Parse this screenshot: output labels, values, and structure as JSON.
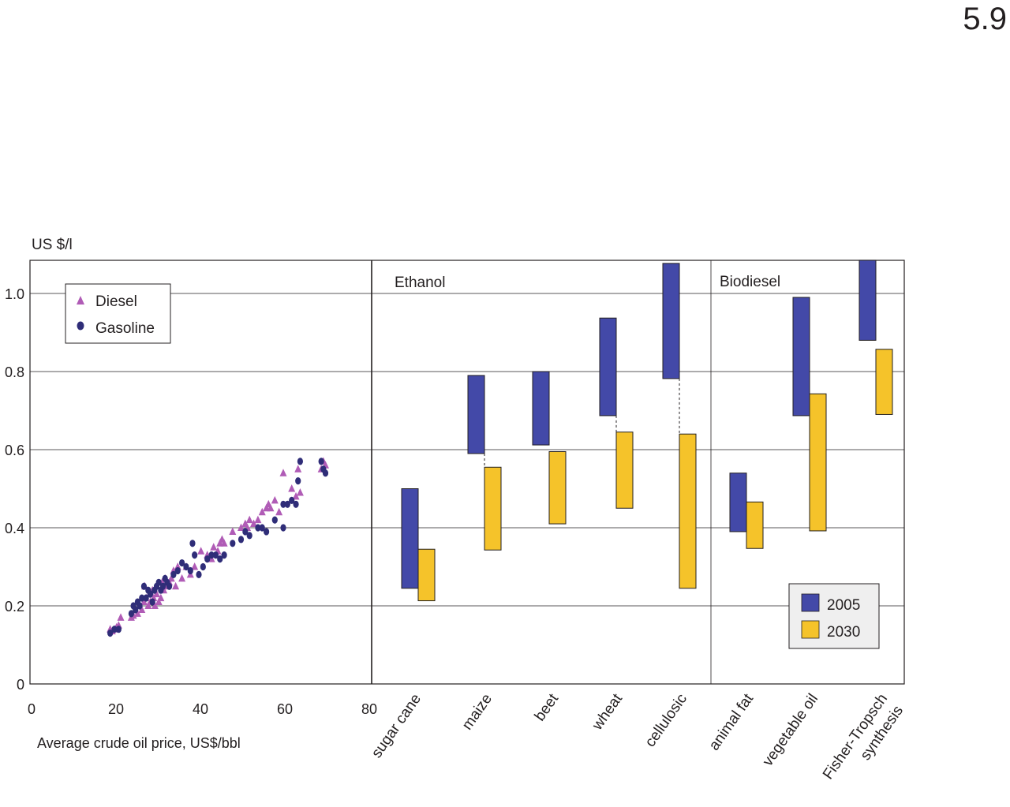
{
  "figure_number": "5.9",
  "chart_data": [
    {
      "type": "scatter",
      "ylabel": "US $/l",
      "xlabel": "Average crude oil price, US$/bbl",
      "xlim": [
        0,
        80
      ],
      "ylim": [
        0,
        1.1
      ],
      "x_ticks": [
        "0",
        "20",
        "40",
        "60",
        "80"
      ],
      "y_ticks": [
        "0",
        "0.2",
        "0.4",
        "0.6",
        "0.8",
        "1.0"
      ],
      "grid": "horizontal",
      "legend": "top-left",
      "series": [
        {
          "name": "Diesel",
          "marker": "triangle",
          "color": "#b05cb6",
          "points": [
            [
              19,
              0.14
            ],
            [
              19.5,
              0.135
            ],
            [
              20,
              0.14
            ],
            [
              20.5,
              0.145
            ],
            [
              21,
              0.15
            ],
            [
              21.5,
              0.17
            ],
            [
              24,
              0.17
            ],
            [
              24.5,
              0.175
            ],
            [
              25,
              0.19
            ],
            [
              25.5,
              0.18
            ],
            [
              26,
              0.2
            ],
            [
              26.5,
              0.19
            ],
            [
              27,
              0.21
            ],
            [
              27.2,
              0.25
            ],
            [
              27.5,
              0.22
            ],
            [
              28,
              0.2
            ],
            [
              28.3,
              0.23
            ],
            [
              28.5,
              0.21
            ],
            [
              29,
              0.24
            ],
            [
              29.3,
              0.22
            ],
            [
              29.6,
              0.2
            ],
            [
              30,
              0.23
            ],
            [
              30.5,
              0.21
            ],
            [
              31,
              0.22
            ],
            [
              31.3,
              0.26
            ],
            [
              31.7,
              0.24
            ],
            [
              32,
              0.27
            ],
            [
              32.5,
              0.25
            ],
            [
              33,
              0.26
            ],
            [
              33.5,
              0.27
            ],
            [
              34,
              0.29
            ],
            [
              34.5,
              0.25
            ],
            [
              35,
              0.3
            ],
            [
              36,
              0.27
            ],
            [
              37,
              0.3
            ],
            [
              38,
              0.28
            ],
            [
              39,
              0.3
            ],
            [
              40.5,
              0.34
            ],
            [
              42,
              0.33
            ],
            [
              43,
              0.32
            ],
            [
              43.5,
              0.35
            ],
            [
              44.5,
              0.34
            ],
            [
              45,
              0.36
            ],
            [
              45.5,
              0.37
            ],
            [
              46,
              0.36
            ],
            [
              48,
              0.39
            ],
            [
              50,
              0.4
            ],
            [
              51,
              0.41
            ],
            [
              51.5,
              0.4
            ],
            [
              52,
              0.42
            ],
            [
              53,
              0.41
            ],
            [
              54,
              0.42
            ],
            [
              55,
              0.44
            ],
            [
              56,
              0.45
            ],
            [
              56.5,
              0.46
            ],
            [
              57,
              0.45
            ],
            [
              58,
              0.47
            ],
            [
              59,
              0.44
            ],
            [
              60,
              0.54
            ],
            [
              62,
              0.5
            ],
            [
              63,
              0.48
            ],
            [
              63.5,
              0.55
            ],
            [
              64,
              0.49
            ],
            [
              69,
              0.55
            ],
            [
              69.5,
              0.57
            ],
            [
              70,
              0.56
            ]
          ]
        },
        {
          "name": "Gasoline",
          "marker": "circle",
          "color": "#2f2d78",
          "points": [
            [
              19,
              0.13
            ],
            [
              20,
              0.14
            ],
            [
              21,
              0.14
            ],
            [
              24,
              0.18
            ],
            [
              24.5,
              0.2
            ],
            [
              25,
              0.19
            ],
            [
              25.5,
              0.21
            ],
            [
              26,
              0.2
            ],
            [
              26.5,
              0.22
            ],
            [
              27,
              0.25
            ],
            [
              27.5,
              0.22
            ],
            [
              28,
              0.24
            ],
            [
              28.5,
              0.23
            ],
            [
              29,
              0.21
            ],
            [
              29.5,
              0.24
            ],
            [
              30,
              0.25
            ],
            [
              30.5,
              0.26
            ],
            [
              31,
              0.24
            ],
            [
              31.5,
              0.25
            ],
            [
              32,
              0.27
            ],
            [
              32.5,
              0.26
            ],
            [
              33,
              0.25
            ],
            [
              34,
              0.28
            ],
            [
              35,
              0.29
            ],
            [
              36,
              0.31
            ],
            [
              37,
              0.3
            ],
            [
              38,
              0.29
            ],
            [
              38.5,
              0.36
            ],
            [
              39,
              0.33
            ],
            [
              40,
              0.28
            ],
            [
              41,
              0.3
            ],
            [
              42,
              0.32
            ],
            [
              43,
              0.33
            ],
            [
              44,
              0.33
            ],
            [
              45,
              0.32
            ],
            [
              46,
              0.33
            ],
            [
              48,
              0.36
            ],
            [
              50,
              0.37
            ],
            [
              51,
              0.39
            ],
            [
              52,
              0.38
            ],
            [
              54,
              0.4
            ],
            [
              55,
              0.4
            ],
            [
              56,
              0.39
            ],
            [
              58,
              0.42
            ],
            [
              60,
              0.46
            ],
            [
              61,
              0.46
            ],
            [
              62,
              0.47
            ],
            [
              63,
              0.46
            ],
            [
              63.5,
              0.52
            ],
            [
              64,
              0.57
            ],
            [
              60,
              0.4
            ],
            [
              69,
              0.57
            ],
            [
              69.5,
              0.55
            ],
            [
              70,
              0.54
            ]
          ]
        }
      ]
    },
    {
      "type": "bar",
      "ylim": [
        0,
        1.1
      ],
      "legend": "bottom-right",
      "groups": [
        {
          "name": "Ethanol",
          "categories": [
            "sugar cane",
            "maize",
            "beet",
            "wheat",
            "cellulosic"
          ]
        },
        {
          "name": "Biodiesel",
          "categories": [
            "animal fat",
            "vegetable oil",
            "Fisher-Tropsch synthesis"
          ]
        }
      ],
      "categories": [
        "sugar cane",
        "maize",
        "beet",
        "wheat",
        "cellulosic",
        "animal fat",
        "vegetable oil",
        "Fisher-Tropsch synthesis"
      ],
      "series": [
        {
          "name": "2005",
          "color": "#4349a8",
          "ranges": [
            [
              0.245,
              0.5
            ],
            [
              0.59,
              0.79
            ],
            [
              0.612,
              0.8
            ],
            [
              0.687,
              0.937
            ],
            [
              0.782,
              1.077
            ],
            [
              0.39,
              0.54
            ],
            [
              0.687,
              0.99
            ],
            [
              0.88,
              1.085
            ]
          ]
        },
        {
          "name": "2030",
          "color": "#f5c32a",
          "ranges": [
            [
              0.213,
              0.345
            ],
            [
              0.343,
              0.555
            ],
            [
              0.41,
              0.595
            ],
            [
              0.45,
              0.645
            ],
            [
              0.245,
              0.64
            ],
            [
              0.347,
              0.466
            ],
            [
              0.392,
              0.743
            ],
            [
              0.69,
              0.857
            ]
          ]
        }
      ],
      "connectors": [
        "maize",
        "wheat",
        "cellulosic"
      ]
    }
  ]
}
